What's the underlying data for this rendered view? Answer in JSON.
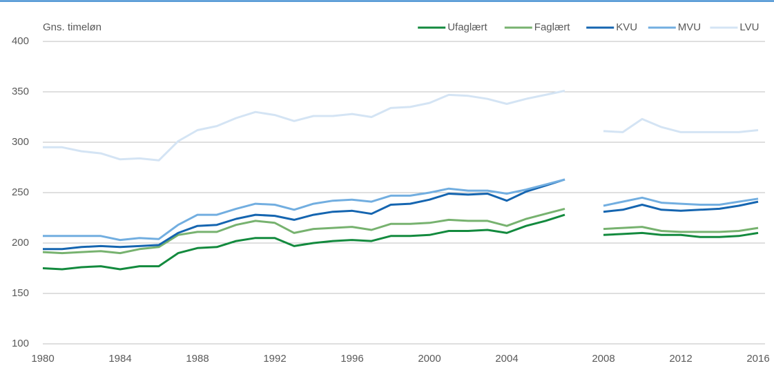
{
  "chart_data": {
    "type": "line",
    "y_label": "Gns. timeløn",
    "categories": [
      "1980",
      null,
      null,
      null,
      "1984",
      null,
      null,
      null,
      "1988",
      null,
      null,
      null,
      "1992",
      null,
      null,
      null,
      "1996",
      null,
      null,
      null,
      "2000",
      null,
      null,
      null,
      "2004",
      null,
      null,
      null,
      null,
      "2008",
      null,
      null,
      null,
      "2012",
      null,
      null,
      null,
      "2016"
    ],
    "series": [
      {
        "name": "Ufaglært",
        "color": "#138a3e",
        "values": [
          175,
          174,
          176,
          177,
          174,
          177,
          177,
          190,
          195,
          196,
          202,
          205,
          205,
          197,
          200,
          202,
          203,
          202,
          207,
          207,
          208,
          212,
          212,
          213,
          210,
          217,
          222,
          228,
          null,
          208,
          209,
          210,
          208,
          208,
          206,
          206,
          207,
          210
        ]
      },
      {
        "name": "Faglært",
        "color": "#77b26f",
        "values": [
          191,
          190,
          191,
          192,
          190,
          194,
          196,
          208,
          211,
          211,
          218,
          222,
          220,
          210,
          214,
          215,
          216,
          213,
          219,
          219,
          220,
          223,
          222,
          222,
          217,
          224,
          229,
          234,
          null,
          214,
          215,
          216,
          212,
          211,
          211,
          211,
          212,
          215
        ]
      },
      {
        "name": "KVU",
        "color": "#1565b0",
        "values": [
          194,
          194,
          196,
          197,
          196,
          197,
          198,
          210,
          217,
          218,
          224,
          228,
          227,
          223,
          228,
          231,
          232,
          229,
          238,
          239,
          243,
          249,
          248,
          249,
          242,
          251,
          257,
          263,
          null,
          231,
          233,
          238,
          233,
          232,
          233,
          234,
          237,
          241
        ]
      },
      {
        "name": "MVU",
        "color": "#72aee0",
        "values": [
          207,
          207,
          207,
          207,
          203,
          205,
          204,
          218,
          228,
          228,
          234,
          239,
          238,
          233,
          239,
          242,
          243,
          241,
          247,
          247,
          250,
          254,
          252,
          252,
          249,
          253,
          258,
          263,
          null,
          237,
          241,
          245,
          240,
          239,
          238,
          238,
          241,
          244
        ]
      },
      {
        "name": "LVU",
        "color": "#d4e4f4",
        "values": [
          295,
          295,
          291,
          289,
          283,
          284,
          282,
          301,
          312,
          316,
          324,
          330,
          327,
          321,
          326,
          326,
          328,
          325,
          334,
          335,
          339,
          347,
          346,
          343,
          338,
          343,
          347,
          351,
          null,
          311,
          310,
          323,
          315,
          310,
          310,
          310,
          310,
          312
        ]
      }
    ],
    "ylim": [
      100,
      400
    ],
    "yticks": [
      100,
      150,
      200,
      250,
      300,
      350,
      400
    ],
    "grid": true,
    "legend": "top-right"
  }
}
